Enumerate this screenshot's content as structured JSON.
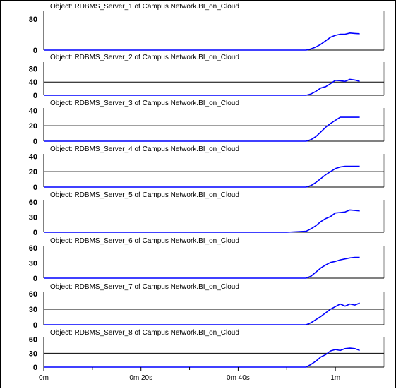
{
  "colors": {
    "series": "#0000ff",
    "axis": "#000000",
    "grid": "#000000",
    "background": "#ffffff"
  },
  "chart_data": {
    "type": "line",
    "x_unit": "seconds",
    "x_range": [
      0,
      70
    ],
    "x_ticks": [
      {
        "value": 0,
        "label": "0m"
      },
      {
        "value": 20,
        "label": "0m 20s"
      },
      {
        "value": 40,
        "label": "0m 40s"
      },
      {
        "value": 60,
        "label": "1m"
      }
    ],
    "x_minor_ticks": [
      10,
      30,
      50
    ],
    "x_common": [
      0,
      10,
      20,
      30,
      40,
      50,
      54,
      55,
      56,
      57,
      58,
      59,
      60,
      61,
      62,
      63,
      64,
      65
    ],
    "panels": [
      {
        "title": "Object: RDBMS_Server_1 of Campus Network.BI_on_Cloud",
        "yticks": [
          0,
          80
        ],
        "ylim": [
          0,
          100
        ],
        "values": [
          0,
          0,
          0,
          0,
          0,
          0,
          0,
          3,
          8,
          15,
          24,
          33,
          38,
          41,
          41,
          44,
          43,
          42
        ]
      },
      {
        "title": "Object: RDBMS_Server_2 of Campus Network.BI_on_Cloud",
        "yticks": [
          0,
          40,
          80
        ],
        "ylim": [
          0,
          100
        ],
        "values": [
          0,
          0,
          0,
          0,
          0,
          0,
          0,
          4,
          12,
          22,
          26,
          35,
          45,
          44,
          42,
          48,
          46,
          42
        ]
      },
      {
        "title": "Object: RDBMS_Server_3 of Campus Network.BI_on_Cloud",
        "yticks": [
          0,
          20,
          40
        ],
        "ylim": [
          0,
          43
        ],
        "values": [
          0,
          0,
          0,
          0,
          0,
          0,
          0,
          2,
          6,
          12,
          18,
          23,
          27,
          31,
          31,
          31,
          31,
          31
        ]
      },
      {
        "title": "Object: RDBMS_Server_4 of Campus Network.BI_on_Cloud",
        "yticks": [
          0,
          20,
          40
        ],
        "ylim": [
          0,
          43
        ],
        "values": [
          0,
          0,
          0,
          0,
          0,
          0,
          0,
          2,
          6,
          11,
          16,
          20,
          24,
          26,
          27,
          27,
          27,
          27
        ]
      },
      {
        "title": "Object: RDBMS_Server_5 of Campus Network.BI_on_Cloud",
        "yticks": [
          0,
          30,
          60
        ],
        "ylim": [
          0,
          64
        ],
        "values": [
          0,
          0,
          0,
          0,
          0,
          0,
          2,
          7,
          13,
          21,
          27,
          31,
          38,
          39,
          40,
          44,
          43,
          42
        ]
      },
      {
        "title": "Object: RDBMS_Server_6 of Campus Network.BI_on_Cloud",
        "yticks": [
          0,
          30,
          60
        ],
        "ylim": [
          0,
          64
        ],
        "values": [
          0,
          0,
          0,
          0,
          0,
          0,
          0,
          4,
          12,
          20,
          26,
          31,
          33,
          36,
          38,
          40,
          41,
          41
        ]
      },
      {
        "title": "Object: RDBMS_Server_7 of Campus Network.BI_on_Cloud",
        "yticks": [
          0,
          30,
          60
        ],
        "ylim": [
          0,
          64
        ],
        "values": [
          0,
          0,
          0,
          0,
          0,
          0,
          0,
          4,
          10,
          16,
          23,
          30,
          35,
          40,
          36,
          40,
          38,
          42
        ]
      },
      {
        "title": "Object: RDBMS_Server_8 of Campus Network.BI_on_Cloud",
        "yticks": [
          0,
          30,
          60
        ],
        "ylim": [
          0,
          64
        ],
        "values": [
          0,
          0,
          0,
          0,
          0,
          0,
          0,
          6,
          13,
          22,
          27,
          35,
          38,
          36,
          40,
          41,
          40,
          36
        ]
      }
    ]
  }
}
